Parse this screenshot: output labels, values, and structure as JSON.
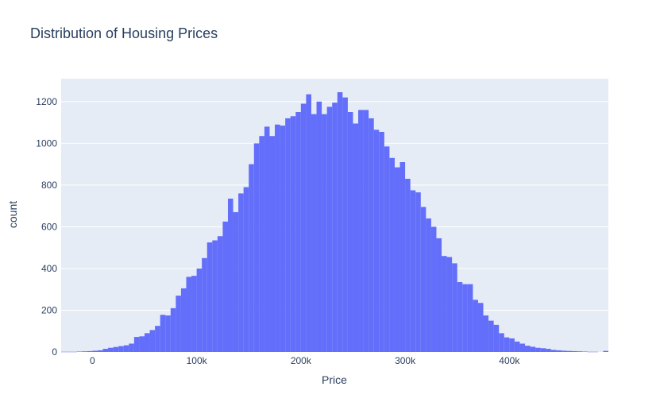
{
  "chart_data": {
    "type": "bar",
    "title": "Distribution of Housing Prices",
    "xlabel": "Price",
    "ylabel": "count",
    "xlim": [
      -30000,
      495000
    ],
    "ylim": [
      0,
      1310
    ],
    "bin_width": 5000,
    "x_ticks": [
      {
        "value": 0,
        "label": "0"
      },
      {
        "value": 100000,
        "label": "100k"
      },
      {
        "value": 200000,
        "label": "200k"
      },
      {
        "value": 300000,
        "label": "300k"
      },
      {
        "value": 400000,
        "label": "400k"
      }
    ],
    "y_ticks": [
      {
        "value": 0,
        "label": "0"
      },
      {
        "value": 200,
        "label": "200"
      },
      {
        "value": 400,
        "label": "400"
      },
      {
        "value": 600,
        "label": "600"
      },
      {
        "value": 800,
        "label": "800"
      },
      {
        "value": 1000,
        "label": "1000"
      },
      {
        "value": 1200,
        "label": "1200"
      }
    ],
    "bin_starts": [
      -30000,
      -25000,
      -20000,
      -15000,
      -10000,
      -5000,
      0,
      5000,
      10000,
      15000,
      20000,
      25000,
      30000,
      35000,
      40000,
      45000,
      50000,
      55000,
      60000,
      65000,
      70000,
      75000,
      80000,
      85000,
      90000,
      95000,
      100000,
      105000,
      110000,
      115000,
      120000,
      125000,
      130000,
      135000,
      140000,
      145000,
      150000,
      155000,
      160000,
      165000,
      170000,
      175000,
      180000,
      185000,
      190000,
      195000,
      200000,
      205000,
      210000,
      215000,
      220000,
      225000,
      230000,
      235000,
      240000,
      245000,
      250000,
      255000,
      260000,
      265000,
      270000,
      275000,
      280000,
      285000,
      290000,
      295000,
      300000,
      305000,
      310000,
      315000,
      320000,
      325000,
      330000,
      335000,
      340000,
      345000,
      350000,
      355000,
      360000,
      365000,
      370000,
      375000,
      380000,
      385000,
      390000,
      395000,
      400000,
      405000,
      410000,
      415000,
      420000,
      425000,
      430000,
      435000,
      440000,
      445000,
      450000,
      455000,
      460000,
      465000,
      470000,
      475000,
      480000,
      485000,
      490000
    ],
    "counts": [
      1,
      1,
      1,
      2,
      3,
      4,
      6,
      8,
      15,
      20,
      24,
      28,
      32,
      40,
      72,
      75,
      90,
      105,
      125,
      178,
      175,
      210,
      270,
      305,
      360,
      365,
      400,
      450,
      525,
      535,
      555,
      625,
      735,
      670,
      760,
      790,
      900,
      1000,
      1035,
      1080,
      1035,
      1090,
      1085,
      1120,
      1130,
      1150,
      1190,
      1235,
      1140,
      1200,
      1140,
      1175,
      1195,
      1245,
      1220,
      1150,
      1095,
      1160,
      1160,
      1120,
      1065,
      1055,
      985,
      930,
      885,
      910,
      830,
      775,
      765,
      695,
      640,
      600,
      545,
      460,
      455,
      425,
      335,
      325,
      325,
      250,
      235,
      175,
      150,
      130,
      90,
      70,
      65,
      50,
      40,
      30,
      25,
      20,
      18,
      15,
      10,
      8,
      6,
      5,
      4,
      3,
      2,
      1,
      1,
      0,
      5
    ]
  }
}
